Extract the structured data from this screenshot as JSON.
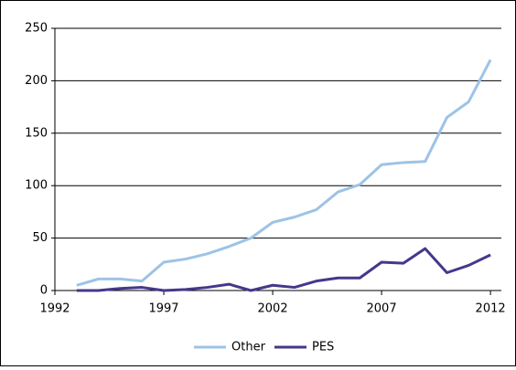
{
  "chart_data": {
    "type": "line",
    "x": [
      1993,
      1994,
      1995,
      1996,
      1997,
      1998,
      1999,
      2000,
      2001,
      2002,
      2003,
      2004,
      2005,
      2006,
      2007,
      2008,
      2009,
      2010,
      2011,
      2012
    ],
    "series": [
      {
        "name": "Other",
        "color": "#9dc3e6",
        "values": [
          5,
          11,
          11,
          9,
          27,
          30,
          35,
          42,
          50,
          65,
          70,
          77,
          94,
          101,
          120,
          122,
          123,
          165,
          180,
          220
        ]
      },
      {
        "name": "PES",
        "color": "#46378c",
        "values": [
          0,
          0,
          2,
          3,
          0,
          1,
          3,
          6,
          0,
          5,
          3,
          9,
          12,
          12,
          27,
          26,
          40,
          17,
          24,
          34
        ]
      }
    ],
    "xlim": [
      1992,
      2012.5
    ],
    "xticks": [
      1992,
      1997,
      2002,
      2007,
      2012
    ],
    "ylim": [
      0,
      250
    ],
    "yticks": [
      0,
      50,
      100,
      150,
      200,
      250
    ],
    "grid": true,
    "legend": "bottom"
  }
}
